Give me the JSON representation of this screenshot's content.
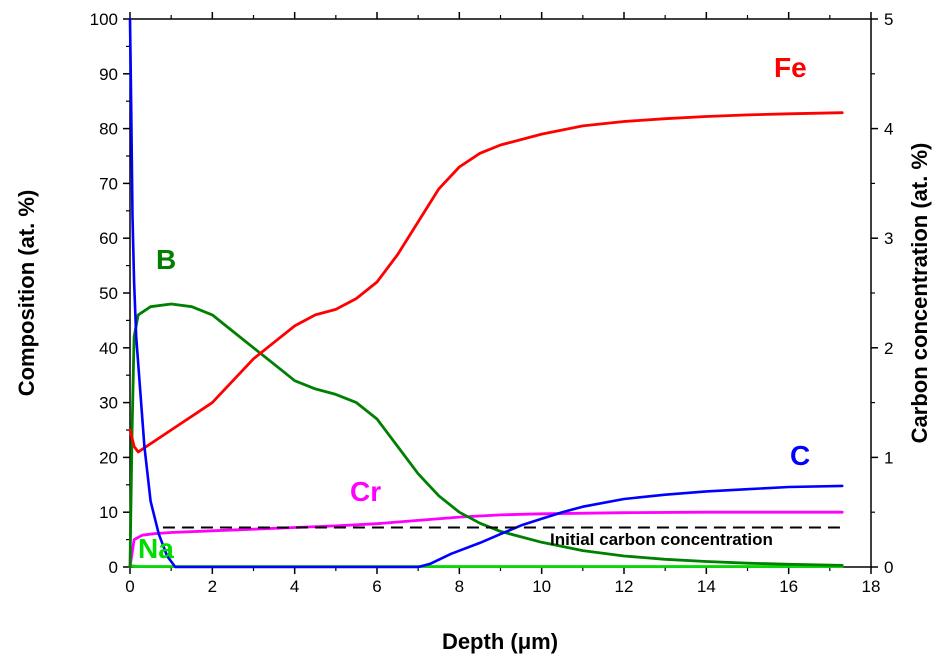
{
  "chart_data": {
    "type": "line",
    "xlabel": "Depth (μm)",
    "ylabel": "Composition (at. %)",
    "y2label": "Carbon concentration (at. %)",
    "xlim": [
      0,
      18
    ],
    "ylim": [
      0,
      100
    ],
    "y2lim": [
      0,
      5
    ],
    "xticks": [
      0,
      2,
      4,
      6,
      8,
      10,
      12,
      14,
      16,
      18
    ],
    "yticks": [
      0,
      10,
      20,
      30,
      40,
      50,
      60,
      70,
      80,
      90,
      100
    ],
    "y2ticks": [
      0,
      1,
      2,
      3,
      4,
      5
    ],
    "grid": false,
    "annotation": {
      "text": "Initial carbon concentration",
      "y2": 0.36
    },
    "series": [
      {
        "name": "Fe",
        "axis": "left",
        "color": "#ff0000",
        "x": [
          0,
          0.1,
          0.2,
          0.4,
          0.8,
          1.2,
          1.6,
          2.0,
          2.5,
          3.0,
          3.5,
          4.0,
          4.5,
          5.0,
          5.5,
          6.0,
          6.5,
          7.0,
          7.5,
          8.0,
          8.5,
          9.0,
          10.0,
          11.0,
          12.0,
          13.0,
          14.0,
          15.0,
          16.0,
          17.3
        ],
        "y": [
          25,
          22,
          21,
          22,
          24,
          26,
          28,
          30,
          34,
          38,
          41,
          44,
          46,
          47,
          49,
          52,
          57,
          63,
          69,
          73,
          75.5,
          77,
          79,
          80.5,
          81.3,
          81.8,
          82.2,
          82.5,
          82.7,
          82.9
        ]
      },
      {
        "name": "B",
        "axis": "left",
        "color": "#008000",
        "x": [
          0,
          0.05,
          0.1,
          0.2,
          0.5,
          1.0,
          1.5,
          2.0,
          2.5,
          3.0,
          3.5,
          4.0,
          4.5,
          5.0,
          5.5,
          6.0,
          6.5,
          7.0,
          7.5,
          8.0,
          8.5,
          9.0,
          10.0,
          11.0,
          12.0,
          13.0,
          14.0,
          15.0,
          16.0,
          17.3
        ],
        "y": [
          0,
          25,
          42,
          46,
          47.5,
          48,
          47.5,
          46,
          43,
          40,
          37,
          34,
          32.5,
          31.5,
          30,
          27,
          22,
          17,
          13,
          10,
          8,
          6.5,
          4.5,
          3,
          2,
          1.4,
          1.0,
          0.7,
          0.5,
          0.3
        ]
      },
      {
        "name": "Cr",
        "axis": "left",
        "color": "#ff00ff",
        "x": [
          0,
          0.1,
          0.3,
          0.6,
          1.0,
          2.0,
          3.0,
          4.0,
          5.0,
          6.0,
          7.0,
          8.0,
          9.0,
          10.0,
          12.0,
          14.0,
          17.3
        ],
        "y": [
          0,
          5,
          5.8,
          6.1,
          6.3,
          6.6,
          6.9,
          7.2,
          7.5,
          7.9,
          8.5,
          9.1,
          9.5,
          9.7,
          9.9,
          10.0,
          10.0
        ]
      },
      {
        "name": "Na",
        "axis": "left",
        "color": "#00dd00",
        "x": [
          0,
          0.05,
          0.2,
          1,
          5,
          10,
          17.3
        ],
        "y": [
          0.3,
          0.2,
          0.1,
          0.1,
          0.1,
          0.1,
          0.1
        ]
      },
      {
        "name": "C",
        "axis": "right",
        "color": "#0000ff",
        "x": [
          0,
          0.03,
          0.06,
          0.1,
          0.15,
          0.25,
          0.35,
          0.5,
          0.7,
          0.9,
          1.1,
          2,
          4,
          6,
          7,
          7.3,
          7.8,
          8.5,
          9.0,
          9.5,
          10,
          10.5,
          11,
          12,
          13,
          14,
          15,
          16,
          17.3
        ],
        "y": [
          5.0,
          4.2,
          3.2,
          2.6,
          2.1,
          1.6,
          1.1,
          0.6,
          0.3,
          0.1,
          0.0,
          0.0,
          0.0,
          0.0,
          0.0,
          0.03,
          0.12,
          0.22,
          0.3,
          0.38,
          0.44,
          0.5,
          0.55,
          0.62,
          0.66,
          0.69,
          0.71,
          0.73,
          0.74
        ]
      }
    ]
  }
}
